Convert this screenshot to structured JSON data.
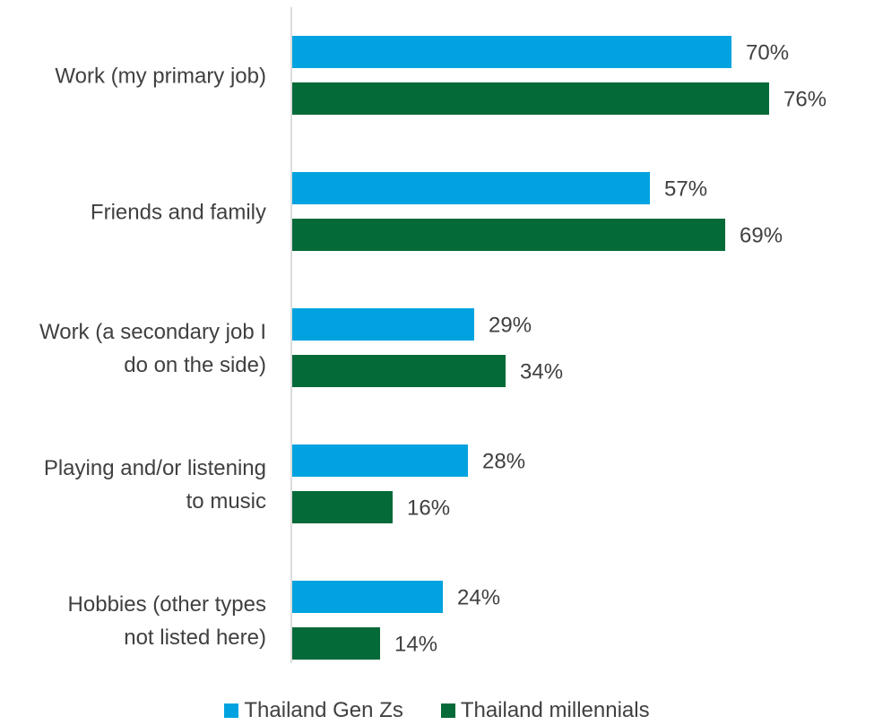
{
  "chart_data": {
    "type": "bar",
    "orientation": "horizontal",
    "title": "",
    "xlabel": "",
    "ylabel": "",
    "xlim": [
      0,
      80
    ],
    "grid": false,
    "legend_position": "bottom",
    "value_format": "percent",
    "categories": [
      "Work (my primary job)",
      "Friends and family",
      "Work (a secondary job I do on the side)",
      "Playing and/or listening to music",
      "Hobbies (other types not listed here)"
    ],
    "category_label_lines": [
      [
        "Work (my primary job)"
      ],
      [
        "Friends and family"
      ],
      [
        "Work (a secondary job I",
        "do on the side)"
      ],
      [
        "Playing and/or listening",
        "to music"
      ],
      [
        "Hobbies (other types",
        "not listed here)"
      ]
    ],
    "series": [
      {
        "name": "Thailand Gen Zs",
        "color": "#00a3e0",
        "values": [
          70,
          57,
          29,
          28,
          24
        ],
        "labels": [
          "70%",
          "57%",
          "29%",
          "28%",
          "24%"
        ]
      },
      {
        "name": "Thailand millennials",
        "color": "#046a38",
        "values": [
          76,
          69,
          34,
          16,
          14
        ],
        "labels": [
          "76%",
          "69%",
          "34%",
          "16%",
          "14%"
        ]
      }
    ]
  }
}
